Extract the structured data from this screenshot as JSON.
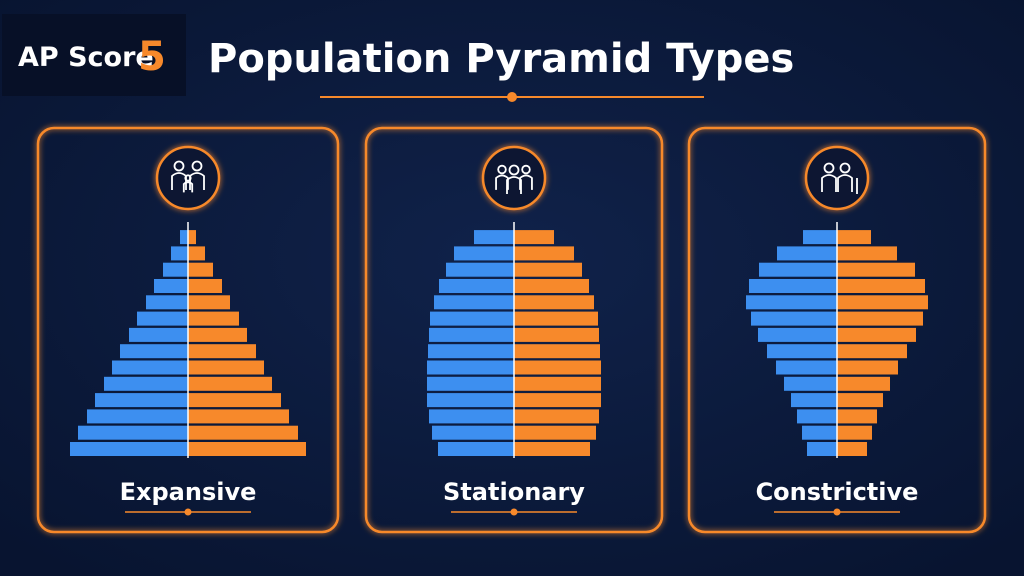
{
  "header": {
    "logo_text": "AP Score",
    "logo_number": "5",
    "title": "Population Pyramid Types"
  },
  "chart_data": [
    {
      "type": "pyramid",
      "title": "Expansive",
      "series": [
        {
          "color": "#3d8ff0",
          "values": [
            118,
            110,
            101,
            93,
            84,
            76,
            68,
            59,
            51,
            42,
            34,
            25,
            17,
            8
          ]
        },
        {
          "color": "#f7892b",
          "values": [
            118,
            110,
            101,
            93,
            84,
            76,
            68,
            59,
            51,
            42,
            34,
            25,
            17,
            8
          ]
        }
      ]
    },
    {
      "type": "pyramid",
      "title": "Stationary",
      "series": [
        {
          "color": "#3d8ff0",
          "values": [
            76,
            82,
            85,
            87,
            87,
            87,
            86,
            85,
            84,
            80,
            75,
            68,
            60,
            40
          ]
        },
        {
          "color": "#f7892b",
          "values": [
            76,
            82,
            85,
            87,
            87,
            87,
            86,
            85,
            84,
            80,
            75,
            68,
            60,
            40
          ]
        }
      ]
    },
    {
      "type": "pyramid",
      "title": "Constrictive",
      "series": [
        {
          "color": "#3d8ff0",
          "values": [
            30,
            35,
            40,
            46,
            53,
            61,
            70,
            79,
            86,
            91,
            88,
            78,
            60,
            34
          ]
        },
        {
          "color": "#f7892b",
          "values": [
            30,
            35,
            40,
            46,
            53,
            61,
            70,
            79,
            86,
            91,
            88,
            78,
            60,
            34
          ]
        }
      ]
    }
  ]
}
